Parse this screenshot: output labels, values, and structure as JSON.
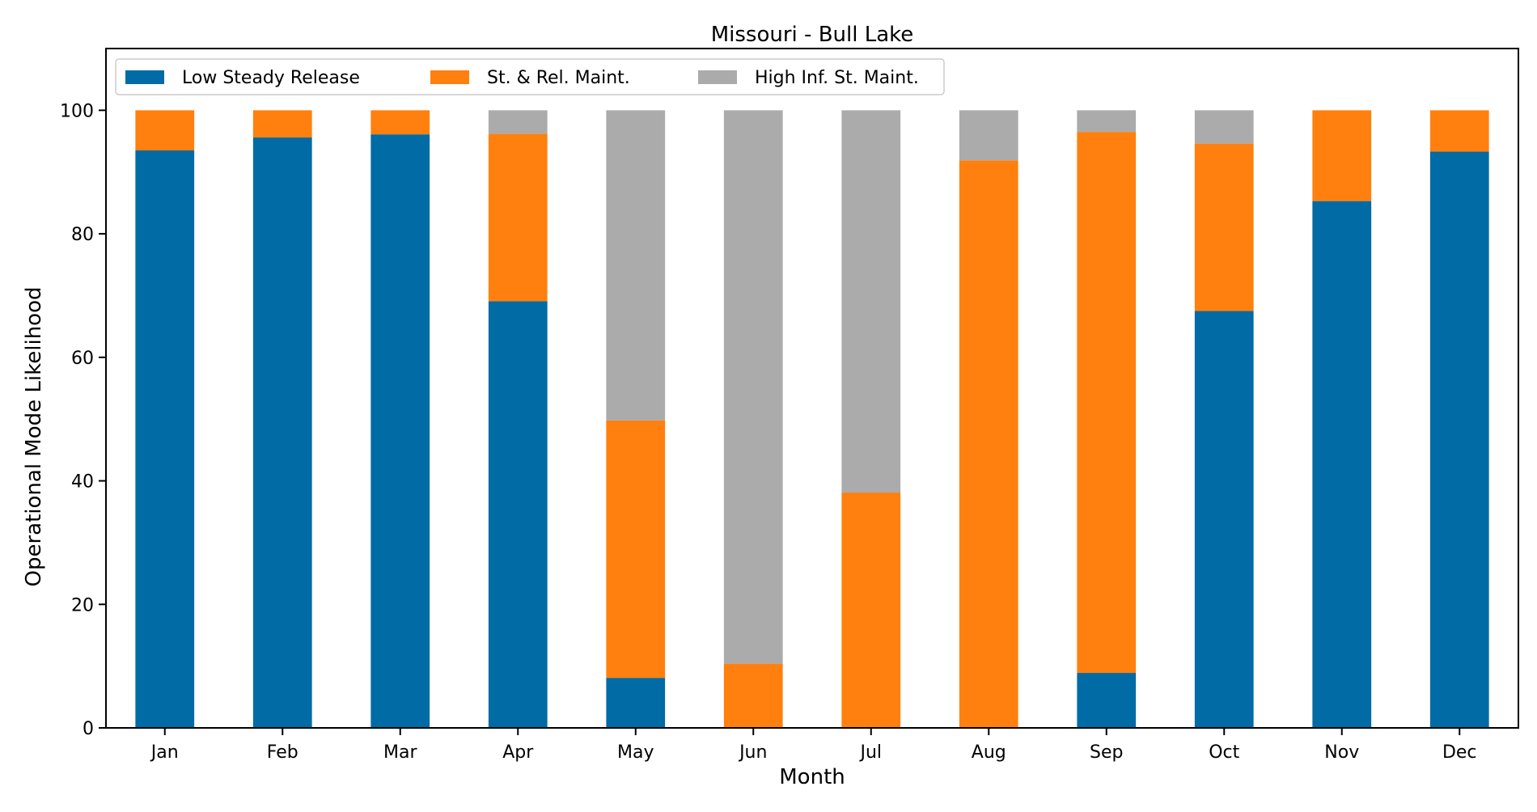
{
  "chart_data": {
    "type": "bar",
    "stacked": true,
    "title": "Missouri - Bull Lake",
    "xlabel": "Month",
    "ylabel": "Operational Mode Likelihood",
    "ylim": [
      0,
      110
    ],
    "yticks": [
      0,
      20,
      40,
      60,
      80,
      100
    ],
    "grid": false,
    "legend_position": "top-left",
    "categories": [
      "Jan",
      "Feb",
      "Mar",
      "Apr",
      "May",
      "Jun",
      "Jul",
      "Aug",
      "Sep",
      "Oct",
      "Nov",
      "Dec"
    ],
    "series": [
      {
        "name": "Low Steady Release",
        "color": "#006BA4",
        "values": [
          93.5,
          95.6,
          96.1,
          69.1,
          8.1,
          0,
          0,
          0,
          8.9,
          67.5,
          85.3,
          93.3
        ]
      },
      {
        "name": "St. & Rel. Maint.",
        "color": "#FF800E",
        "values": [
          6.5,
          4.4,
          3.9,
          27.1,
          41.7,
          10.4,
          38.1,
          91.9,
          87.6,
          27.1,
          14.7,
          6.7
        ]
      },
      {
        "name": "High Inf. St. Maint.",
        "color": "#ABABAB",
        "values": [
          0,
          0,
          0,
          3.8,
          50.2,
          89.6,
          61.9,
          8.1,
          3.5,
          5.4,
          0,
          0
        ]
      }
    ]
  }
}
